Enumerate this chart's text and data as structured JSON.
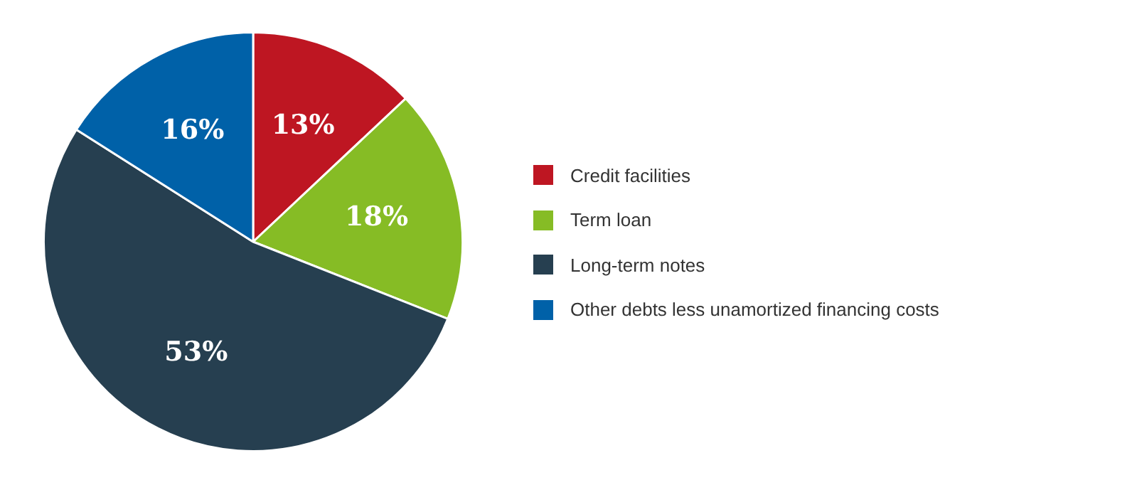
{
  "chart_data": {
    "type": "pie",
    "categories": [
      "Credit facilities",
      "Term loan",
      "Long-term notes",
      "Other debts less unamortized financing costs"
    ],
    "values": [
      13,
      18,
      53,
      16
    ],
    "value_labels": [
      "13%",
      "18%",
      "53%",
      "16%"
    ],
    "colors": [
      "#be1622",
      "#86bc25",
      "#263f50",
      "#0061a8"
    ],
    "legend": "right"
  }
}
